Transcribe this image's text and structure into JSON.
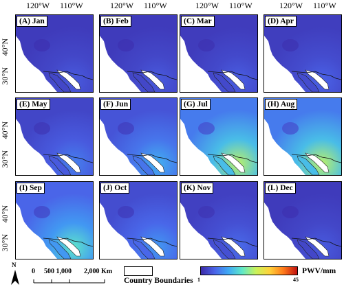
{
  "axes": {
    "lon_ticks": [
      "120°W",
      "110°W"
    ],
    "lat_ticks": [
      "40°N",
      "30°N"
    ]
  },
  "panels": [
    {
      "label": "(A) Jan",
      "level": 0.12
    },
    {
      "label": "(B) Feb",
      "level": 0.12
    },
    {
      "label": "(C) Mar",
      "level": 0.13
    },
    {
      "label": "(D) Apr",
      "level": 0.14
    },
    {
      "label": "(E) May",
      "level": 0.2
    },
    {
      "label": "(F) Jun",
      "level": 0.3
    },
    {
      "label": "(G) Jul",
      "level": 0.55
    },
    {
      "label": "(H) Aug",
      "level": 0.55
    },
    {
      "label": "(I) Sep",
      "level": 0.42
    },
    {
      "label": "(J) Oct",
      "level": 0.25
    },
    {
      "label": "(K) Nov",
      "level": 0.16
    },
    {
      "label": "(L) Dec",
      "level": 0.12
    }
  ],
  "scale_bar": {
    "north": "N",
    "ticks": [
      "0",
      "500 1,000",
      "2,000 Km"
    ]
  },
  "legend": {
    "boundary_label": "Country Boundaries",
    "colorbar_title": "PWV/mm",
    "colorbar_min": "1",
    "colorbar_max": "45",
    "colors": [
      "#3b2aa8",
      "#4a63e8",
      "#3fa9f5",
      "#5fe8c8",
      "#c9f25a",
      "#ffd23a",
      "#ff7a1a",
      "#c01010"
    ]
  }
}
